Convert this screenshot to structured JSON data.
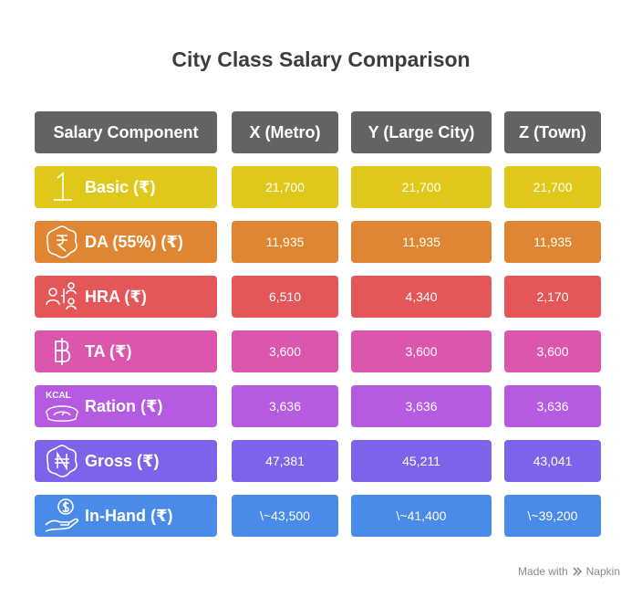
{
  "title": "City Class Salary Comparison",
  "headers": [
    "Salary Component",
    "X (Metro)",
    "Y (Large City)",
    "Z (Town)"
  ],
  "header_color": "#636363",
  "rows": [
    {
      "label": "Basic (₹)",
      "icon": "number-one-icon",
      "color": "#e0c81a",
      "values": [
        "21,700",
        "21,700",
        "21,700"
      ]
    },
    {
      "label": "DA (55%) (₹)",
      "icon": "rupee-badge-icon",
      "color": "#e08632",
      "values": [
        "11,935",
        "11,935",
        "11,935"
      ]
    },
    {
      "label": "HRA (₹)",
      "icon": "people-network-icon",
      "color": "#e45657",
      "values": [
        "6,510",
        "4,340",
        "2,170"
      ]
    },
    {
      "label": "TA (₹)",
      "icon": "baht-icon",
      "color": "#dc56ad",
      "values": [
        "3,600",
        "3,600",
        "3,600"
      ]
    },
    {
      "label": "Ration (₹)",
      "icon": "kcal-scale-icon",
      "color": "#b55ae1",
      "values": [
        "3,636",
        "3,636",
        "3,636"
      ]
    },
    {
      "label": "Gross (₹)",
      "icon": "naira-badge-icon",
      "color": "#7d63e9",
      "values": [
        "47,381",
        "45,211",
        "43,041"
      ]
    },
    {
      "label": "In-Hand (₹)",
      "icon": "hand-coin-icon",
      "color": "#4a8ae8",
      "values": [
        "\\~43,500",
        "\\~41,400",
        "\\~39,200"
      ]
    }
  ],
  "footer": {
    "made_with": "Made with",
    "brand": "Napkin"
  }
}
